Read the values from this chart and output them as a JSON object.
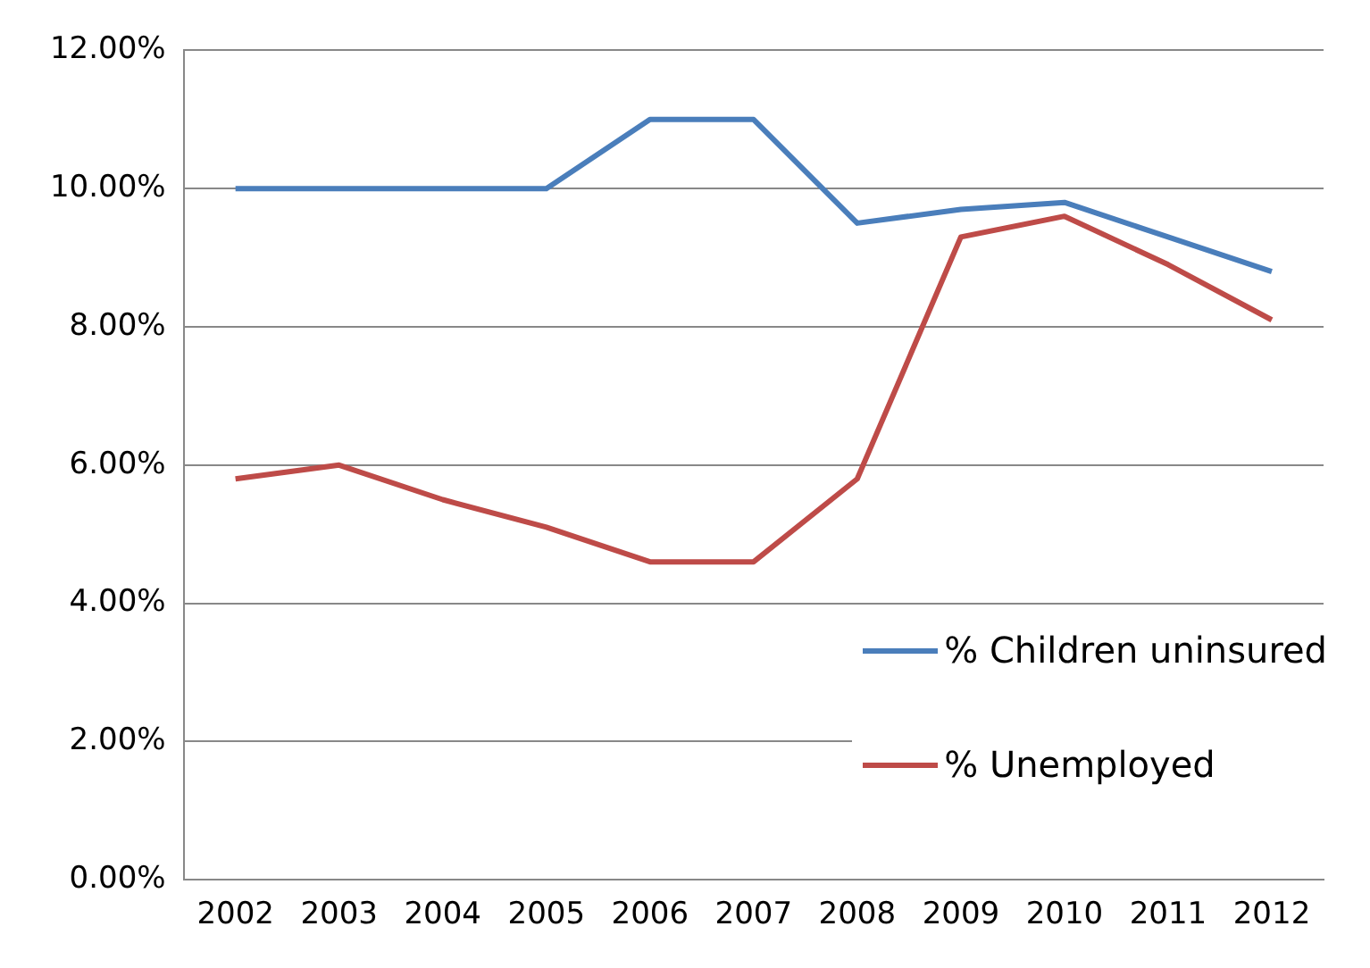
{
  "chart_data": {
    "type": "line",
    "categories": [
      "2002",
      "2003",
      "2004",
      "2005",
      "2006",
      "2007",
      "2008",
      "2009",
      "2010",
      "2011",
      "2012"
    ],
    "series": [
      {
        "name": "% Children uninsured",
        "color": "#4a7ebb",
        "values": [
          10,
          10,
          10,
          10,
          11,
          11,
          9.5,
          9.7,
          9.8,
          9.3,
          8.8
        ]
      },
      {
        "name": "% Unemployed",
        "color": "#be4b48",
        "values": [
          5.8,
          6.0,
          5.5,
          5.1,
          4.6,
          4.6,
          5.8,
          9.3,
          9.6,
          8.9,
          8.1
        ]
      }
    ],
    "ylim": [
      0,
      12
    ],
    "yticks": [
      {
        "value": 0,
        "label": "0.00%"
      },
      {
        "value": 2,
        "label": "2.00%"
      },
      {
        "value": 4,
        "label": "4.00%"
      },
      {
        "value": 6,
        "label": "6.00%"
      },
      {
        "value": 8,
        "label": "8.00%"
      },
      {
        "value": 10,
        "label": "10.00%"
      },
      {
        "value": 12,
        "label": "12.00%"
      }
    ],
    "grid": "y",
    "legend": "right",
    "marker": "none",
    "line_style": "solid"
  }
}
